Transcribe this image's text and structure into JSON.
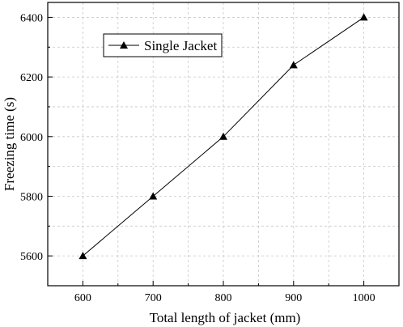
{
  "chart_data": {
    "type": "line",
    "xlabel": "Total length of jacket (mm)",
    "ylabel": "Freezing time (s)",
    "xlim": [
      550,
      1050
    ],
    "ylim": [
      5500,
      6450
    ],
    "x_ticks": [
      600,
      700,
      800,
      900,
      1000
    ],
    "y_ticks": [
      5600,
      5800,
      6000,
      6200,
      6400
    ],
    "grid": true,
    "legend_position": "top-left",
    "series": [
      {
        "name": "Single Jacket",
        "marker": "triangle",
        "color": "#000000",
        "x": [
          600,
          700,
          800,
          900,
          1000
        ],
        "y": [
          5600,
          5800,
          6000,
          6240,
          6400
        ]
      }
    ]
  }
}
